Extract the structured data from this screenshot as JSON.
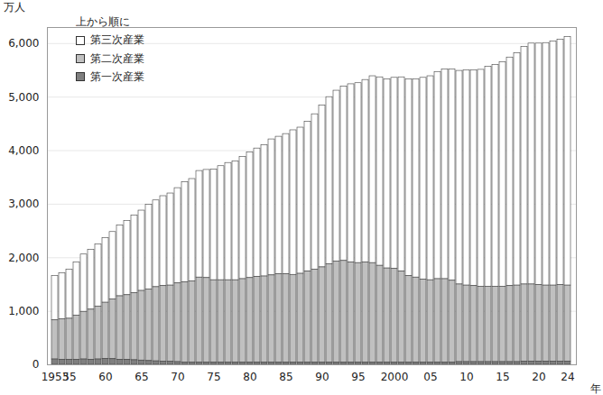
{
  "chart_data": {
    "type": "bar",
    "stacked": true,
    "y_label": "万人",
    "x_label": "年",
    "legend": "top-left",
    "legend_title": "上から順に",
    "grid": true,
    "categories": [
      "1953",
      null,
      "55",
      null,
      null,
      null,
      null,
      "60",
      null,
      null,
      null,
      null,
      "65",
      null,
      null,
      null,
      null,
      "70",
      null,
      null,
      null,
      null,
      "75",
      null,
      null,
      null,
      null,
      "80",
      null,
      null,
      null,
      null,
      "85",
      null,
      null,
      null,
      null,
      "90",
      null,
      null,
      null,
      null,
      "95",
      null,
      null,
      null,
      null,
      "2000",
      null,
      null,
      null,
      null,
      "05",
      null,
      null,
      null,
      null,
      "10",
      null,
      null,
      null,
      null,
      "15",
      null,
      null,
      null,
      null,
      "20",
      null,
      null,
      null,
      "24"
    ],
    "series": [
      {
        "name": "第三次産業",
        "color": "#ffffff",
        "values": [
          830,
          860,
          920,
          990,
          1070,
          1120,
          1160,
          1210,
          1260,
          1320,
          1390,
          1450,
          1500,
          1580,
          1620,
          1680,
          1720,
          1780,
          1870,
          1910,
          1990,
          2020,
          2070,
          2130,
          2190,
          2220,
          2280,
          2350,
          2400,
          2450,
          2540,
          2570,
          2620,
          2700,
          2730,
          2800,
          2900,
          3020,
          3120,
          3190,
          3260,
          3330,
          3360,
          3410,
          3490,
          3520,
          3530,
          3570,
          3630,
          3670,
          3700,
          3770,
          3810,
          3870,
          3920,
          3950,
          3990,
          4020,
          4030,
          4050,
          4110,
          4140,
          4190,
          4270,
          4340,
          4440,
          4500,
          4510,
          4530,
          4560,
          4580,
          4640
        ]
      },
      {
        "name": "第二次産業",
        "color": "#c0c0c0",
        "values": [
          730,
          755,
          770,
          825,
          890,
          935,
          990,
          1050,
          1115,
          1185,
          1210,
          1255,
          1300,
          1340,
          1385,
          1410,
          1425,
          1470,
          1495,
          1515,
          1585,
          1580,
          1540,
          1540,
          1540,
          1540,
          1560,
          1580,
          1600,
          1610,
          1630,
          1650,
          1650,
          1640,
          1660,
          1700,
          1740,
          1780,
          1840,
          1890,
          1900,
          1870,
          1860,
          1870,
          1860,
          1810,
          1760,
          1750,
          1700,
          1620,
          1590,
          1550,
          1540,
          1560,
          1560,
          1530,
          1450,
          1430,
          1420,
          1410,
          1410,
          1410,
          1410,
          1420,
          1430,
          1440,
          1440,
          1430,
          1420,
          1420,
          1430,
          1420
        ]
      },
      {
        "name": "第一次産業",
        "color": "#7f7f7f",
        "values": [
          100,
          95,
          90,
          95,
          100,
          95,
          100,
          110,
          105,
          95,
          90,
          85,
          80,
          70,
          65,
          60,
          55,
          50,
          45,
          45,
          45,
          40,
          40,
          40,
          40,
          40,
          40,
          40,
          40,
          40,
          40,
          40,
          40,
          40,
          40,
          40,
          40,
          40,
          40,
          40,
          40,
          40,
          40,
          40,
          40,
          40,
          40,
          40,
          40,
          40,
          40,
          40,
          40,
          40,
          40,
          40,
          50,
          50,
          50,
          50,
          50,
          50,
          50,
          50,
          50,
          60,
          60,
          60,
          60,
          60,
          60,
          60
        ]
      }
    ],
    "ylim": [
      0,
      6300
    ],
    "yticks": [
      0,
      {
        "value": 1000,
        "label": "1,000"
      },
      {
        "value": 2000,
        "label": "2,000"
      },
      {
        "value": 3000,
        "label": "3,000"
      },
      {
        "value": 4000,
        "label": "4,000"
      },
      {
        "value": 5000,
        "label": "5,000"
      },
      {
        "value": 6000,
        "label": "6,000"
      }
    ]
  }
}
